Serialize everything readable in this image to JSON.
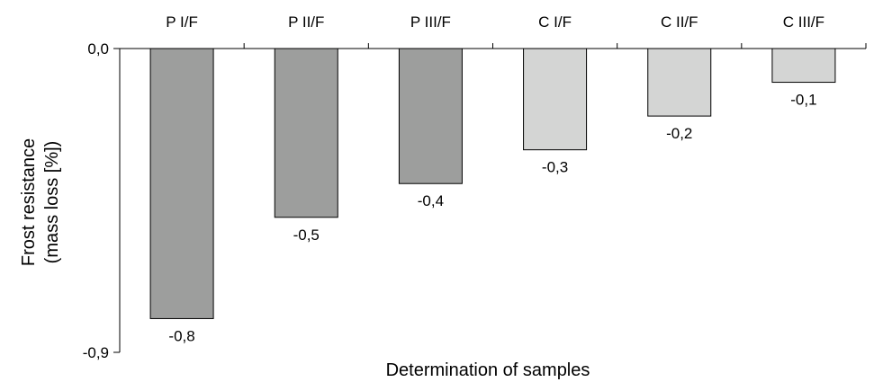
{
  "chart_data": {
    "type": "bar",
    "categories": [
      "P I/F",
      "P II/F",
      "P III/F",
      "C I/F",
      "C II/F",
      "C III/F"
    ],
    "values": [
      -0.8,
      -0.5,
      -0.4,
      -0.3,
      -0.2,
      -0.1
    ],
    "data_labels": [
      "-0,8",
      "-0,5",
      "-0,4",
      "-0,3",
      "-0,2",
      "-0,1"
    ],
    "bar_colors": [
      "#9d9e9d",
      "#9d9e9d",
      "#9d9e9d",
      "#d4d5d4",
      "#d4d5d4",
      "#d4d5d4"
    ],
    "xlabel": "Determination of samples",
    "ylabel_lines": [
      "Frost resistance",
      "(mass loss [%])"
    ],
    "ylim": [
      -0.9,
      0.0
    ],
    "ytick_values": [
      0.0,
      -0.9
    ],
    "ytick_labels": [
      "0,0",
      "-0,9"
    ],
    "category_labels_position": "top",
    "grid": false,
    "legend": false
  }
}
